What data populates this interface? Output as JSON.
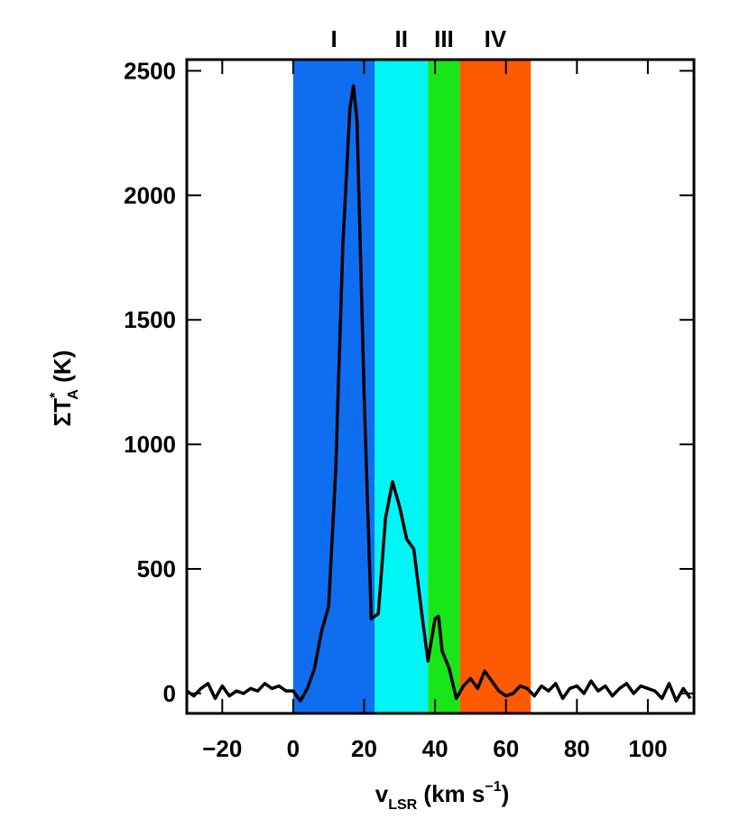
{
  "chart_data": {
    "type": "line",
    "xlabel": {
      "main": "v",
      "sub": "LSR",
      "rest": " (km s",
      "sup": "−1",
      "end": ")"
    },
    "ylabel": {
      "main": "ΣT",
      "sup": "*",
      "sub": "A",
      "rest": " (K)"
    },
    "xlim": [
      -30,
      113
    ],
    "ylim": [
      -80,
      2545
    ],
    "xticks": [
      {
        "value": -20,
        "label": "−20"
      },
      0,
      20,
      40,
      60,
      80,
      100
    ],
    "yticks": [
      0,
      500,
      1000,
      1500,
      2000,
      2500
    ],
    "regions": [
      {
        "label": "I",
        "range": [
          0,
          23
        ],
        "color": "#0f6ef0"
      },
      {
        "label": "II",
        "range": [
          23,
          38
        ],
        "color": "#00f5f5"
      },
      {
        "label": "III",
        "range": [
          38,
          47
        ],
        "color": "#19e619"
      },
      {
        "label": "IV",
        "range": [
          47,
          67
        ],
        "color": "#ff5a00"
      }
    ],
    "x": [
      -30,
      -28,
      -26,
      -24,
      -22,
      -20,
      -18,
      -16,
      -14,
      -12,
      -10,
      -8,
      -6,
      -4,
      -2,
      0,
      2,
      4,
      6,
      8,
      10,
      12,
      14,
      16,
      17,
      18,
      20,
      22,
      24,
      26,
      28,
      30,
      32,
      34,
      36,
      38,
      40,
      41,
      42,
      44,
      46,
      48,
      50,
      52,
      54,
      56,
      58,
      60,
      62,
      64,
      66,
      68,
      70,
      72,
      74,
      76,
      78,
      80,
      82,
      84,
      86,
      88,
      90,
      92,
      94,
      96,
      98,
      100,
      102,
      104,
      106,
      108,
      110,
      112
    ],
    "series": [
      {
        "color": "#000000",
        "values": [
          10,
          -10,
          20,
          40,
          -20,
          30,
          -10,
          10,
          0,
          20,
          10,
          40,
          20,
          30,
          10,
          10,
          -30,
          20,
          100,
          250,
          350,
          900,
          1800,
          2350,
          2440,
          2300,
          1200,
          300,
          320,
          700,
          850,
          750,
          620,
          580,
          350,
          130,
          300,
          310,
          170,
          100,
          -20,
          30,
          60,
          20,
          90,
          50,
          10,
          -10,
          0,
          30,
          20,
          -10,
          30,
          10,
          40,
          -20,
          20,
          30,
          0,
          50,
          10,
          30,
          -10,
          20,
          40,
          0,
          30,
          20,
          10,
          -20,
          40,
          -30,
          20,
          -20
        ]
      }
    ]
  }
}
